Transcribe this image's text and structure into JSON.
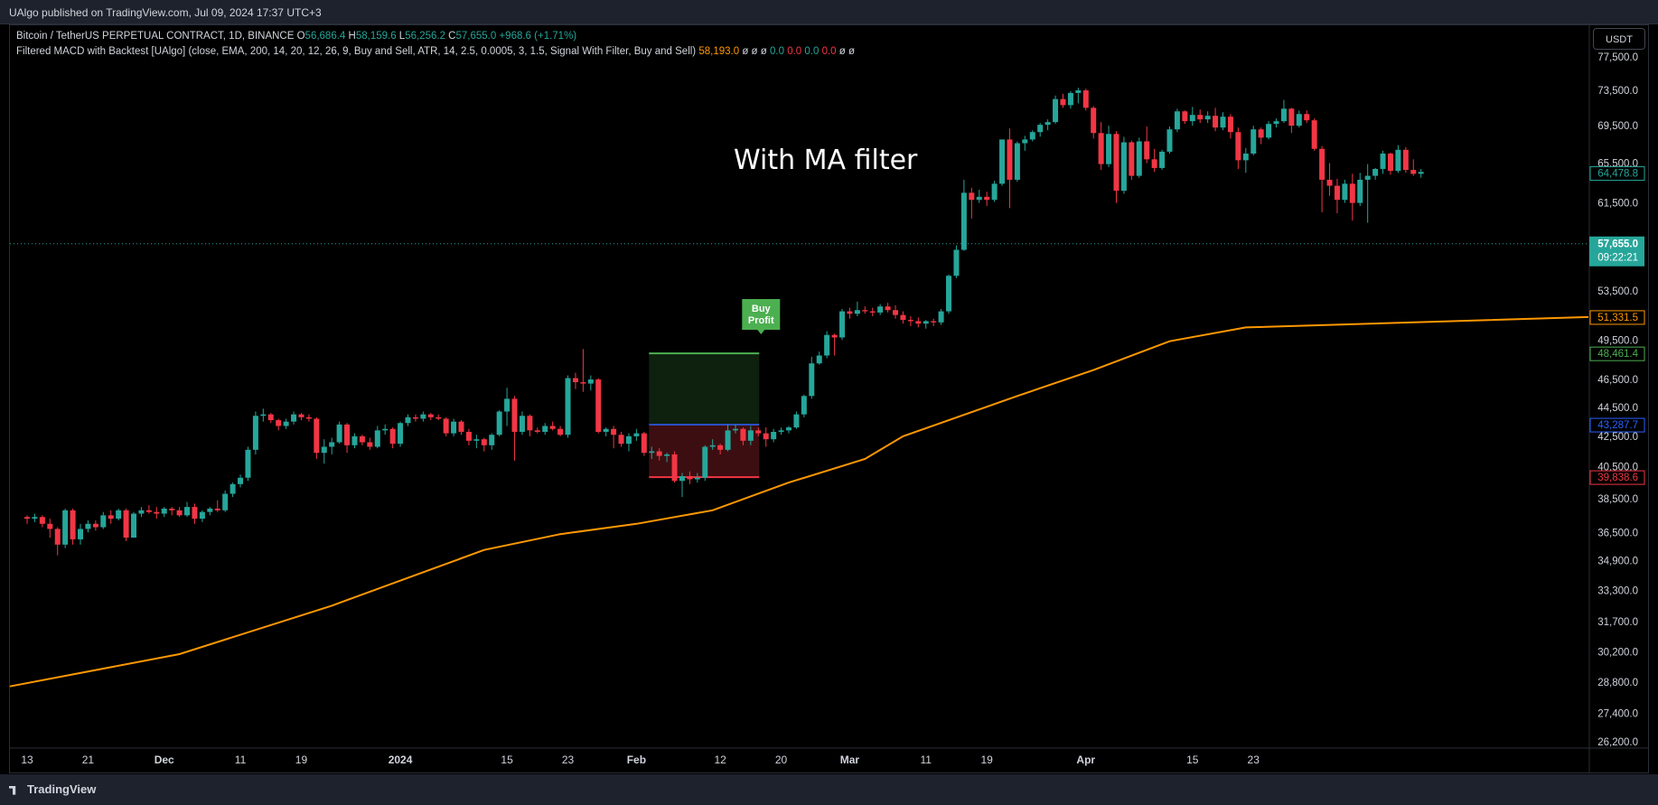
{
  "header": {
    "published": "UAlgo published on TradingView.com, Jul 09, 2024 17:37 UTC+3"
  },
  "legend": {
    "symbol": "Bitcoin / TetherUS PERPETUAL CONTRACT, 1D, BINANCE",
    "o_label": "O",
    "o_value": "56,686.4",
    "h_label": "H",
    "h_value": "58,159.6",
    "l_label": "L",
    "l_value": "56,256.2",
    "c_label": "C",
    "c_value": "57,655.0",
    "change": "+968.6 (+1.71%)",
    "indicator": "Filtered MACD with Backtest [UAlgo] (close, EMA, 200, 14, 20, 12, 26, 9, Buy and Sell, ATR, 14, 2.5, 0.0005, 3, 1.5, Signal With Filter, Buy and Sell)",
    "ind_value": "58,193.0",
    "ind_tail": [
      {
        "text": "ø",
        "color": "#d1d4dc"
      },
      {
        "text": "ø",
        "color": "#d1d4dc"
      },
      {
        "text": "ø",
        "color": "#d1d4dc"
      },
      {
        "text": "0.0",
        "color": "#26a69a"
      },
      {
        "text": "0.0",
        "color": "#f23645"
      },
      {
        "text": "0.0",
        "color": "#26a69a"
      },
      {
        "text": "0.0",
        "color": "#f23645"
      },
      {
        "text": "ø",
        "color": "#d1d4dc"
      },
      {
        "text": "ø",
        "color": "#d1d4dc"
      }
    ]
  },
  "currency_button": "USDT",
  "annotation": "With MA filter",
  "signal": {
    "line1": "Buy",
    "line2": "Profit"
  },
  "footer": {
    "brand": "TradingView"
  },
  "colors": {
    "up": "#26a69a",
    "down": "#f23645",
    "ema": "#ff9800",
    "tp": "#4caf50",
    "sl": "#f23645",
    "entry": "#2962ff"
  },
  "chart_data": {
    "type": "candlestick",
    "y_axis": {
      "ticks": [
        77500,
        73500,
        69500,
        65500,
        61500,
        53500,
        49500,
        46500,
        44500,
        42500,
        40500,
        38500,
        36500,
        34900,
        33300,
        31700,
        30200,
        28800,
        27400,
        26200
      ],
      "tick_labels": [
        "77,500.0",
        "73,500.0",
        "69,500.0",
        "65,500.0",
        "61,500.0",
        "53,500.0",
        "49,500.0",
        "46,500.0",
        "44,500.0",
        "42,500.0",
        "40,500.0",
        "38,500.0",
        "36,500.0",
        "34,900.0",
        "33,300.0",
        "31,700.0",
        "30,200.0",
        "28,800.0",
        "27,400.0",
        "26,200.0"
      ],
      "scale": "log"
    },
    "x_axis": {
      "labels": [
        {
          "text": "13",
          "day": 0
        },
        {
          "text": "21",
          "day": 8
        },
        {
          "text": "Dec",
          "day": 18
        },
        {
          "text": "11",
          "day": 28
        },
        {
          "text": "19",
          "day": 36
        },
        {
          "text": "2024",
          "day": 49
        },
        {
          "text": "15",
          "day": 63
        },
        {
          "text": "23",
          "day": 71
        },
        {
          "text": "Feb",
          "day": 80
        },
        {
          "text": "12",
          "day": 91
        },
        {
          "text": "20",
          "day": 99
        },
        {
          "text": "Mar",
          "day": 108
        },
        {
          "text": "11",
          "day": 118
        },
        {
          "text": "19",
          "day": 126
        },
        {
          "text": "Apr",
          "day": 139
        },
        {
          "text": "15",
          "day": 153
        },
        {
          "text": "23",
          "day": 161
        }
      ]
    },
    "candles": [
      [
        37400,
        37500,
        37000,
        37300
      ],
      [
        37300,
        37600,
        37100,
        37400
      ],
      [
        37400,
        37500,
        36800,
        37000
      ],
      [
        37000,
        37300,
        36200,
        36700
      ],
      [
        36700,
        36800,
        35200,
        35800
      ],
      [
        35800,
        37900,
        35600,
        37800
      ],
      [
        37800,
        37900,
        35800,
        36100
      ],
      [
        36100,
        37000,
        35800,
        36700
      ],
      [
        36700,
        37200,
        36500,
        37000
      ],
      [
        37000,
        37200,
        36600,
        36800
      ],
      [
        36800,
        37700,
        36700,
        37500
      ],
      [
        37500,
        37800,
        37000,
        37300
      ],
      [
        37300,
        37900,
        37200,
        37800
      ],
      [
        37800,
        37900,
        36000,
        36200
      ],
      [
        36200,
        37700,
        36200,
        37600
      ],
      [
        37600,
        38000,
        37400,
        37800
      ],
      [
        37800,
        38100,
        37600,
        37700
      ],
      [
        37700,
        38000,
        37300,
        37600
      ],
      [
        37600,
        38000,
        37400,
        37900
      ],
      [
        37900,
        38000,
        37500,
        37800
      ],
      [
        37800,
        38000,
        37400,
        37500
      ],
      [
        37500,
        38300,
        37400,
        38000
      ],
      [
        38000,
        38200,
        37000,
        37300
      ],
      [
        37300,
        37800,
        37100,
        37700
      ],
      [
        37700,
        38000,
        37500,
        37900
      ],
      [
        37900,
        38400,
        37700,
        37800
      ],
      [
        37800,
        39000,
        37700,
        38800
      ],
      [
        38800,
        39500,
        38600,
        39400
      ],
      [
        39400,
        40000,
        39200,
        39800
      ],
      [
        39800,
        41800,
        39600,
        41600
      ],
      [
        41600,
        44200,
        41300,
        43900
      ],
      [
        43900,
        44400,
        43500,
        44000
      ],
      [
        44000,
        44100,
        43400,
        43600
      ],
      [
        43600,
        43700,
        42900,
        43200
      ],
      [
        43200,
        43700,
        43000,
        43500
      ],
      [
        43500,
        44200,
        43300,
        44000
      ],
      [
        44000,
        44100,
        43600,
        43800
      ],
      [
        43800,
        44000,
        43500,
        43700
      ],
      [
        43700,
        43800,
        41000,
        41400
      ],
      [
        41400,
        42300,
        40700,
        41800
      ],
      [
        41800,
        42400,
        41300,
        42100
      ],
      [
        42100,
        43500,
        42000,
        43300
      ],
      [
        43300,
        43400,
        41400,
        41900
      ],
      [
        41900,
        42700,
        41700,
        42500
      ],
      [
        42500,
        42600,
        41900,
        42100
      ],
      [
        42100,
        42400,
        41600,
        41800
      ],
      [
        41800,
        43200,
        41700,
        42900
      ],
      [
        42900,
        43300,
        42600,
        43000
      ],
      [
        43000,
        43100,
        41700,
        42000
      ],
      [
        42000,
        43500,
        41800,
        43400
      ],
      [
        43400,
        44000,
        43200,
        43800
      ],
      [
        43800,
        44000,
        43500,
        43700
      ],
      [
        43700,
        44200,
        43500,
        44000
      ],
      [
        44000,
        44100,
        43600,
        43800
      ],
      [
        43800,
        44000,
        43600,
        43700
      ],
      [
        43700,
        43800,
        42500,
        42700
      ],
      [
        42700,
        43700,
        42500,
        43500
      ],
      [
        43500,
        43600,
        42600,
        42800
      ],
      [
        42800,
        43000,
        41900,
        42200
      ],
      [
        42200,
        42600,
        41700,
        42300
      ],
      [
        42300,
        42400,
        41500,
        41900
      ],
      [
        41900,
        42700,
        41600,
        42600
      ],
      [
        42600,
        44300,
        42500,
        44200
      ],
      [
        44200,
        45900,
        43200,
        45100
      ],
      [
        45100,
        45300,
        40900,
        42800
      ],
      [
        42800,
        44200,
        42600,
        43900
      ],
      [
        43900,
        44000,
        42500,
        42900
      ],
      [
        42900,
        43100,
        42700,
        42800
      ],
      [
        42800,
        43400,
        42600,
        43200
      ],
      [
        43200,
        43500,
        42900,
        43000
      ],
      [
        43000,
        43200,
        42500,
        42600
      ],
      [
        42600,
        46800,
        42400,
        46600
      ],
      [
        46600,
        47000,
        45800,
        46300
      ],
      [
        46300,
        48800,
        45600,
        46200
      ],
      [
        46200,
        46800,
        45700,
        46500
      ],
      [
        46500,
        46600,
        42700,
        42800
      ],
      [
        42800,
        43100,
        42500,
        43000
      ],
      [
        43000,
        43200,
        41700,
        42600
      ],
      [
        42600,
        42800,
        41800,
        42000
      ],
      [
        42000,
        42700,
        41500,
        42500
      ],
      [
        42500,
        43000,
        42200,
        42700
      ],
      [
        42700,
        42800,
        41200,
        41400
      ],
      [
        41400,
        41800,
        41000,
        41500
      ],
      [
        41500,
        41700,
        40900,
        41200
      ],
      [
        41200,
        41400,
        40800,
        41300
      ],
      [
        41300,
        41500,
        39500,
        39600
      ],
      [
        39600,
        40100,
        38600,
        39900
      ],
      [
        39900,
        40200,
        39400,
        39700
      ],
      [
        39700,
        40100,
        39500,
        39800
      ],
      [
        39800,
        41900,
        39600,
        41800
      ],
      [
        41800,
        42300,
        41600,
        41900
      ],
      [
        41900,
        42000,
        41300,
        41600
      ],
      [
        41600,
        43300,
        41500,
        42900
      ],
      [
        42900,
        43300,
        42700,
        43000
      ],
      [
        43000,
        43100,
        41900,
        42200
      ],
      [
        42200,
        43200,
        41900,
        42900
      ],
      [
        42900,
        43100,
        42500,
        42700
      ],
      [
        42700,
        43100,
        41800,
        42300
      ],
      [
        42300,
        43000,
        42100,
        42800
      ],
      [
        42800,
        43100,
        42600,
        42900
      ],
      [
        42900,
        43200,
        42700,
        43100
      ],
      [
        43100,
        44200,
        43000,
        44000
      ],
      [
        44000,
        45400,
        43800,
        45300
      ],
      [
        45300,
        48200,
        45100,
        47700
      ],
      [
        47700,
        48600,
        47600,
        48300
      ],
      [
        48300,
        50200,
        48100,
        49900
      ],
      [
        49900,
        50000,
        48300,
        49700
      ],
      [
        49700,
        52000,
        49500,
        51800
      ],
      [
        51800,
        52100,
        51200,
        51600
      ],
      [
        51600,
        52600,
        51400,
        51900
      ],
      [
        51900,
        52200,
        51600,
        51800
      ],
      [
        51800,
        52100,
        51400,
        51700
      ],
      [
        51700,
        52400,
        51500,
        52200
      ],
      [
        52200,
        52500,
        51700,
        51900
      ],
      [
        51900,
        52300,
        51200,
        51500
      ],
      [
        51500,
        51800,
        50800,
        51100
      ],
      [
        51100,
        51400,
        50600,
        51000
      ],
      [
        51000,
        51300,
        50500,
        50800
      ],
      [
        50800,
        51100,
        50400,
        51000
      ],
      [
        51000,
        51200,
        50600,
        50900
      ],
      [
        50900,
        52000,
        50700,
        51800
      ],
      [
        51800,
        54900,
        51600,
        54800
      ],
      [
        54800,
        57500,
        54600,
        57100
      ],
      [
        57100,
        63800,
        57000,
        62500
      ],
      [
        62500,
        63000,
        60000,
        61800
      ],
      [
        61800,
        62800,
        61500,
        62100
      ],
      [
        62100,
        62600,
        61200,
        61800
      ],
      [
        61800,
        63700,
        61600,
        63400
      ],
      [
        63400,
        68000,
        63200,
        68000
      ],
      [
        68000,
        69200,
        61000,
        63800
      ],
      [
        63800,
        67800,
        63600,
        67600
      ],
      [
        67600,
        68400,
        66800,
        68000
      ],
      [
        68000,
        69000,
        67800,
        68800
      ],
      [
        68800,
        69800,
        68300,
        69600
      ],
      [
        69600,
        70200,
        69000,
        69900
      ],
      [
        69900,
        72900,
        69700,
        72500
      ],
      [
        72500,
        73100,
        71500,
        71800
      ],
      [
        71800,
        73400,
        71400,
        73200
      ],
      [
        73200,
        73800,
        72000,
        73500
      ],
      [
        73500,
        73700,
        71200,
        71500
      ],
      [
        71500,
        71700,
        68100,
        68700
      ],
      [
        68700,
        69900,
        64800,
        65400
      ],
      [
        65400,
        69500,
        65100,
        68600
      ],
      [
        68600,
        68900,
        61500,
        62700
      ],
      [
        62700,
        68300,
        62400,
        67700
      ],
      [
        67700,
        67900,
        63800,
        64200
      ],
      [
        64200,
        68200,
        64000,
        67800
      ],
      [
        67800,
        69400,
        65500,
        65900
      ],
      [
        65900,
        67000,
        64600,
        65000
      ],
      [
        65000,
        66900,
        64800,
        66700
      ],
      [
        66700,
        69400,
        66500,
        69100
      ],
      [
        69100,
        71400,
        68800,
        71100
      ],
      [
        71100,
        71200,
        69700,
        70000
      ],
      [
        70000,
        71600,
        69500,
        70700
      ],
      [
        70700,
        71300,
        69800,
        70200
      ],
      [
        70200,
        71100,
        69800,
        70600
      ],
      [
        70600,
        71500,
        68900,
        69300
      ],
      [
        69300,
        71000,
        69000,
        70500
      ],
      [
        70500,
        70800,
        68100,
        68800
      ],
      [
        68800,
        69300,
        64900,
        65800
      ],
      [
        65800,
        67100,
        64500,
        66500
      ],
      [
        66500,
        69500,
        66300,
        69100
      ],
      [
        69100,
        69300,
        67500,
        68200
      ],
      [
        68200,
        70000,
        68000,
        69700
      ],
      [
        69700,
        70300,
        69300,
        70000
      ],
      [
        70000,
        72400,
        69800,
        71400
      ],
      [
        71400,
        71500,
        68700,
        69500
      ],
      [
        69500,
        71200,
        69300,
        70800
      ],
      [
        70800,
        71200,
        69800,
        70100
      ],
      [
        70100,
        70300,
        66800,
        67000
      ],
      [
        67000,
        67300,
        60600,
        63800
      ],
      [
        63800,
        65500,
        62200,
        63200
      ],
      [
        63200,
        63900,
        60500,
        61800
      ],
      [
        61800,
        63800,
        61500,
        63400
      ],
      [
        63400,
        64400,
        59800,
        61500
      ],
      [
        61500,
        64500,
        61200,
        63800
      ],
      [
        63800,
        65400,
        59600,
        64200
      ],
      [
        64200,
        65000,
        63800,
        64900
      ],
      [
        64900,
        66800,
        64400,
        66500
      ],
      [
        66500,
        66600,
        64300,
        64700
      ],
      [
        64700,
        67400,
        64500,
        66900
      ],
      [
        66900,
        67200,
        64500,
        64800
      ],
      [
        64800,
        65900,
        64200,
        64400
      ],
      [
        64400,
        64900,
        64000,
        64600
      ]
    ],
    "ema200": {
      "name": "",
      "values_at_days": [
        [
          0,
          28600
        ],
        [
          20,
          30100
        ],
        [
          40,
          32500
        ],
        [
          60,
          35500
        ],
        [
          70,
          36400
        ],
        [
          80,
          37000
        ],
        [
          90,
          37800
        ],
        [
          100,
          39500
        ],
        [
          110,
          41000
        ],
        [
          115,
          42500
        ],
        [
          130,
          45300
        ],
        [
          140,
          47200
        ],
        [
          150,
          49400
        ],
        [
          160,
          50500
        ],
        [
          169,
          51331.5
        ]
      ]
    },
    "position": {
      "start_day": 82,
      "end_day": 96,
      "entry": 43287.7,
      "take_profit": 48461.4,
      "stop_loss": 39838.6,
      "signal_day": 96
    },
    "price_tags": [
      {
        "label": "64,478.8",
        "value": 64478.8,
        "kind": "outline-up"
      },
      {
        "label": "57,655.0",
        "value": 57655.0,
        "kind": "last"
      },
      {
        "label": "09:22:21",
        "value": null,
        "kind": "countdown"
      },
      {
        "label": "51,331.5",
        "value": 51331.5,
        "kind": "outline-ema"
      },
      {
        "label": "48,461.4",
        "value": 48461.4,
        "kind": "outline-tp"
      },
      {
        "label": "43,287.7",
        "value": 43287.7,
        "kind": "outline-entry"
      },
      {
        "label": "39,838.6",
        "value": 39838.6,
        "kind": "outline-sl"
      }
    ],
    "last_price": 57655.0
  }
}
